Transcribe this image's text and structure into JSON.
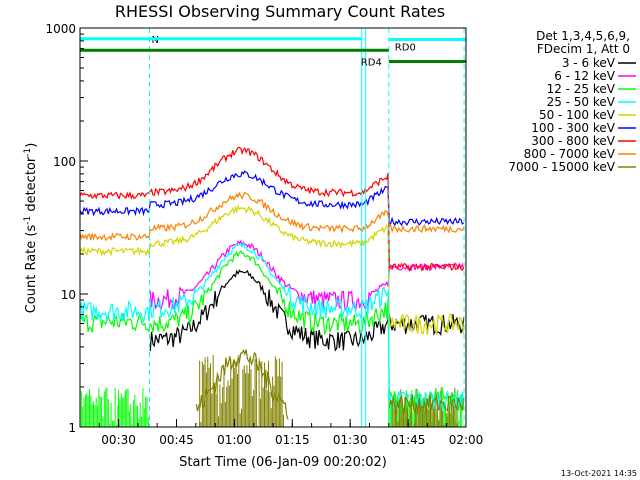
{
  "chart_data": {
    "type": "line",
    "title": "RHESSI Observing Summary Count Rates",
    "xlabel": "Start Time (06-Jan-09 00:20:02)",
    "ylabel_main": "Count Rate (s",
    "ylabel_sup1": "-1",
    "ylabel_mid": " detector",
    "ylabel_sup2": "-1",
    "ylabel_end": ")",
    "yscale": "log",
    "ylim": [
      1,
      1000
    ],
    "xlim_min": [
      20,
      120
    ],
    "x_ticks": [
      {
        "min": 30,
        "label": "00:30"
      },
      {
        "min": 45,
        "label": "00:45"
      },
      {
        "min": 60,
        "label": "01:00"
      },
      {
        "min": 75,
        "label": "01:15"
      },
      {
        "min": 90,
        "label": "01:30"
      },
      {
        "min": 105,
        "label": "01:45"
      },
      {
        "min": 120,
        "label": "02:00"
      }
    ],
    "y_ticks": [
      {
        "v": 1,
        "label": "1"
      },
      {
        "v": 10,
        "label": "10"
      },
      {
        "v": 100,
        "label": "100"
      },
      {
        "v": 1000,
        "label": "1000"
      }
    ],
    "legend_header": [
      "Det 1,3,4,5,6,9,",
      "FDecim 1, Att 0"
    ],
    "series": [
      {
        "name": "3 - 6 keV",
        "color": "#000000",
        "pre": null,
        "gap": 4.5,
        "peak": 14.5,
        "post": 6
      },
      {
        "name": "6 - 12 keV",
        "color": "#ff00ff",
        "pre": null,
        "gap": 9,
        "peak": 24,
        "post": 16
      },
      {
        "name": "12 - 25 keV",
        "color": "#00ff00",
        "pre": 6.2,
        "gap": 6,
        "peak": 20,
        "post": 1.6
      },
      {
        "name": "25 - 50 keV",
        "color": "#00ffff",
        "pre": 7.5,
        "gap": 7.8,
        "peak": 23,
        "post": 1.6
      },
      {
        "name": "50 - 100 keV",
        "color": "#d4d400",
        "pre": 21,
        "gap": 24,
        "peak": 44,
        "post": 6
      },
      {
        "name": "100 - 300 keV",
        "color": "#0000ff",
        "pre": 42,
        "gap": 47,
        "peak": 80,
        "post": 35
      },
      {
        "name": "300 - 800 keV",
        "color": "#ff0000",
        "pre": 55,
        "gap": 58,
        "peak": 120,
        "post": 16
      },
      {
        "name": "800 - 7000 keV",
        "color": "#ff8000",
        "pre": 27,
        "gap": 31,
        "peak": 55,
        "post": 31
      },
      {
        "name": "7000 - 15000 keV",
        "color": "#808000",
        "pre": null,
        "gap": null,
        "peak": 3.5,
        "post": 1.5
      }
    ],
    "annotations": [
      {
        "label": "N",
        "color": "#00ffff",
        "x0": 20,
        "x1": 38,
        "y": 830
      },
      {
        "label": "",
        "color": "#00ffff",
        "x0": 38,
        "x1": 93,
        "y": 830
      },
      {
        "label": "RD0",
        "color": "#00ffff",
        "x0": 100,
        "x1": 120,
        "y": 820
      },
      {
        "label": "",
        "color": "#008000",
        "x0": 20,
        "x1": 100,
        "y": 680
      },
      {
        "label": "RD4",
        "color": "#008000",
        "x0": 100,
        "x1": 120,
        "y": 560
      }
    ],
    "vlines": [
      {
        "min": 38,
        "color": "#00ffff",
        "dash": true
      },
      {
        "min": 93,
        "color": "#00ffff",
        "dash": false
      },
      {
        "min": 94,
        "color": "#00ffff",
        "dash": false
      },
      {
        "min": 100,
        "color": "#00ffff",
        "dash": true
      },
      {
        "min": 119.5,
        "color": "#00ffff",
        "dash": true
      }
    ],
    "footer": "13-Oct-2021 14:35"
  }
}
